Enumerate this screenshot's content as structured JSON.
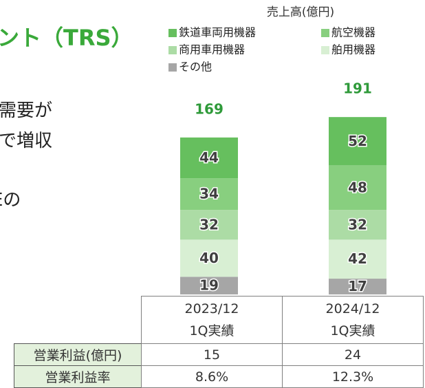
{
  "header": {
    "title": "ント（TRS）",
    "lines": [
      "需要が",
      "で増収",
      "Eの"
    ]
  },
  "chart_data": {
    "type": "stacked_bar",
    "title": "売上高(億円)",
    "categories": [
      "2023/12",
      "2024/12"
    ],
    "category_notes": [
      "1Q実績",
      "1Q実績"
    ],
    "totals": [
      169,
      191
    ],
    "legend_order": [
      4,
      3,
      2,
      1,
      0
    ],
    "series": [
      {
        "name": "その他",
        "color": "#a6a6a6",
        "values": [
          19,
          17
        ]
      },
      {
        "name": "舶用機器",
        "color": "#d8efd3",
        "values": [
          40,
          42
        ]
      },
      {
        "name": "商用車用機器",
        "color": "#acdca5",
        "values": [
          32,
          32
        ]
      },
      {
        "name": "航空機器",
        "color": "#88cf7f",
        "values": [
          34,
          48
        ]
      },
      {
        "name": "鉄道車両用機器",
        "color": "#66bf5e",
        "values": [
          44,
          52
        ]
      }
    ]
  },
  "table": {
    "rows": [
      [
        "営業利益(億円)",
        "15",
        "24"
      ],
      [
        "営業利益率",
        "8.6%",
        "12.3%"
      ]
    ]
  }
}
